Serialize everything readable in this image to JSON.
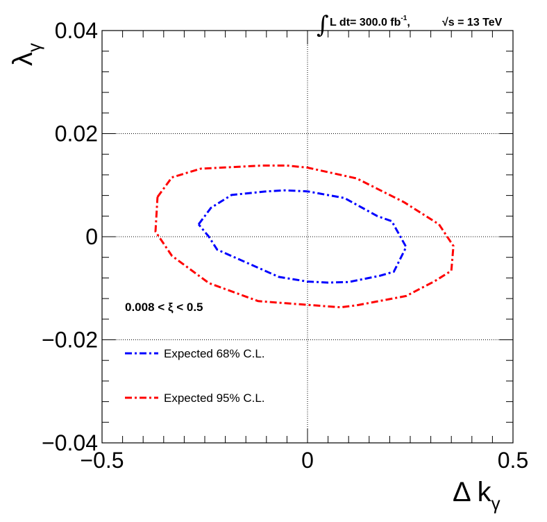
{
  "chart_data": {
    "type": "line",
    "title": "",
    "xlabel_main": "Δ k",
    "xlabel_sub": "γ",
    "ylabel_main": "λ",
    "ylabel_sub": "γ",
    "xlim": [
      -0.5,
      0.5
    ],
    "ylim": [
      -0.04,
      0.04
    ],
    "x_ticks": [
      -0.5,
      0,
      0.5
    ],
    "x_tick_labels": [
      "−0.5",
      "0",
      "0.5"
    ],
    "y_ticks": [
      -0.04,
      -0.02,
      0,
      0.02,
      0.04
    ],
    "y_tick_labels": [
      "−0.04",
      "−0.02",
      "0",
      "0.02",
      "0.04"
    ],
    "grid": true,
    "luminosity": {
      "prefix": "L dt= 300.0 fb",
      "exponent": "-1",
      "sep": ",",
      "sqrt_s": "√s = 13 TeV"
    },
    "annotation": "0.008 < ξ < 0.5",
    "legend_position": "lower-left",
    "series": [
      {
        "name": "Expected 68% C.L.",
        "color": "#0000ff",
        "style": "dash-dot",
        "points": [
          [
            -0.265,
            0.0024
          ],
          [
            -0.235,
            0.0056
          ],
          [
            -0.185,
            0.0081
          ],
          [
            -0.1,
            0.0088
          ],
          [
            -0.055,
            0.009
          ],
          [
            0.0,
            0.0088
          ],
          [
            0.09,
            0.0075
          ],
          [
            0.17,
            0.004
          ],
          [
            0.205,
            0.003
          ],
          [
            0.24,
            -0.002
          ],
          [
            0.21,
            -0.0068
          ],
          [
            0.175,
            -0.0076
          ],
          [
            0.1,
            -0.0088
          ],
          [
            0.05,
            -0.0089
          ],
          [
            0.0,
            -0.0087
          ],
          [
            -0.07,
            -0.0078
          ],
          [
            -0.22,
            -0.0025
          ],
          [
            -0.24,
            0.0
          ],
          [
            -0.265,
            0.0024
          ]
        ]
      },
      {
        "name": "Expected 95% C.L.",
        "color": "#ff0000",
        "style": "dash-dot",
        "points": [
          [
            -0.365,
            0.0077
          ],
          [
            -0.33,
            0.0115
          ],
          [
            -0.26,
            0.0132
          ],
          [
            -0.11,
            0.0138
          ],
          [
            -0.05,
            0.0138
          ],
          [
            0.0,
            0.0134
          ],
          [
            0.12,
            0.0113
          ],
          [
            0.235,
            0.0067
          ],
          [
            0.32,
            0.0024
          ],
          [
            0.355,
            -0.0018
          ],
          [
            0.35,
            -0.0066
          ],
          [
            0.31,
            -0.0086
          ],
          [
            0.24,
            -0.0115
          ],
          [
            0.12,
            -0.0133
          ],
          [
            0.08,
            -0.0137
          ],
          [
            -0.02,
            -0.0131
          ],
          [
            -0.12,
            -0.0125
          ],
          [
            -0.24,
            -0.009
          ],
          [
            -0.33,
            -0.0037
          ],
          [
            -0.37,
            0.001
          ],
          [
            -0.365,
            0.0077
          ]
        ]
      }
    ]
  }
}
